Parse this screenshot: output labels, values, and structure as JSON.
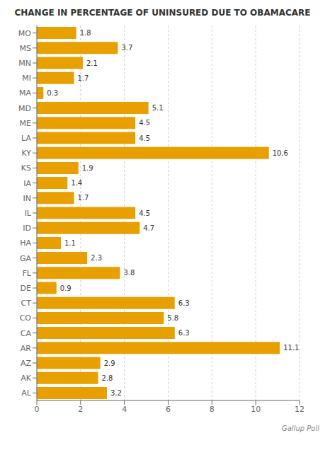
{
  "chart_data": {
    "type": "bar",
    "title": "CHANGE IN PERCENTAGE OF UNINSURED DUE TO OBAMACARE",
    "categories": [
      "MO",
      "MS",
      "MN",
      "MI",
      "MA",
      "MD",
      "ME",
      "LA",
      "KY",
      "KS",
      "IA",
      "IN",
      "IL",
      "ID",
      "HA",
      "GA",
      "FL",
      "DE",
      "CT",
      "CO",
      "CA",
      "AR",
      "AZ",
      "AK",
      "AL"
    ],
    "values": [
      1.8,
      3.7,
      2.1,
      1.7,
      0.3,
      5.1,
      4.5,
      4.5,
      10.6,
      1.9,
      1.4,
      1.7,
      4.5,
      4.7,
      1.1,
      2.3,
      3.8,
      0.9,
      6.3,
      5.8,
      6.3,
      11.1,
      2.9,
      2.8,
      3.2
    ],
    "color": "#E8A000",
    "orientation": "horizontal",
    "xlim": [
      0,
      12
    ],
    "xticks": [
      0,
      2,
      4,
      6,
      8,
      10,
      12
    ],
    "grid": true,
    "data_labels": true,
    "annotations": [
      "Gallup Poll"
    ]
  }
}
